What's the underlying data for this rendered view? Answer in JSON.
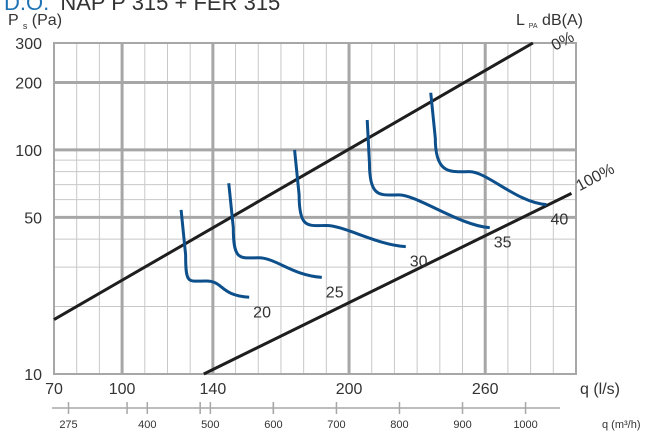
{
  "title": {
    "prefix": "D.O.",
    "rest": "NAP P 315 + FER 315"
  },
  "chart_data": {
    "type": "line",
    "title": "D.O. NAP P 315 + FER 315",
    "xlabel": "q (l/s)",
    "ylabel": "Ps (Pa)",
    "ylabel_parts": {
      "main": "P",
      "sub": "s",
      "unit": " (Pa)"
    },
    "y_scale": "log",
    "xlim": [
      70,
      300
    ],
    "ylim": [
      10,
      300
    ],
    "x_ticks": [
      70,
      100,
      140,
      200,
      260
    ],
    "y_ticks": [
      10,
      50,
      100,
      200,
      300
    ],
    "x_axis_label": "q (l/s)",
    "secondary_x": {
      "label": "q (m³/h)",
      "ticks": [
        "275",
        "400",
        "500",
        "600",
        "700",
        "800",
        "900",
        "1000"
      ]
    },
    "noise_header": {
      "main": "L",
      "sub": "PA",
      "unit": "dB(A)"
    },
    "lines": [
      {
        "name": "0%",
        "points": [
          [
            70,
            17.5
          ],
          [
            281,
            300
          ]
        ]
      },
      {
        "name": "100%",
        "points": [
          [
            136,
            10
          ],
          [
            298,
            64
          ]
        ]
      }
    ],
    "series": [
      {
        "name": "20",
        "points": [
          [
            126,
            54
          ],
          [
            128,
            34
          ],
          [
            137,
            26
          ],
          [
            156,
            22
          ]
        ]
      },
      {
        "name": "25",
        "points": [
          [
            147,
            71
          ],
          [
            149,
            45
          ],
          [
            160,
            33
          ],
          [
            188,
            27
          ]
        ]
      },
      {
        "name": "30",
        "points": [
          [
            176,
            100
          ],
          [
            178,
            63
          ],
          [
            190,
            46
          ],
          [
            225,
            37
          ]
        ]
      },
      {
        "name": "35",
        "points": [
          [
            208,
            136
          ],
          [
            209,
            87
          ],
          [
            222,
            63
          ],
          [
            262,
            45
          ]
        ]
      },
      {
        "name": "40",
        "points": [
          [
            236,
            180
          ],
          [
            238,
            113
          ],
          [
            253,
            80
          ],
          [
            287,
            57
          ]
        ]
      }
    ],
    "grid": true
  }
}
